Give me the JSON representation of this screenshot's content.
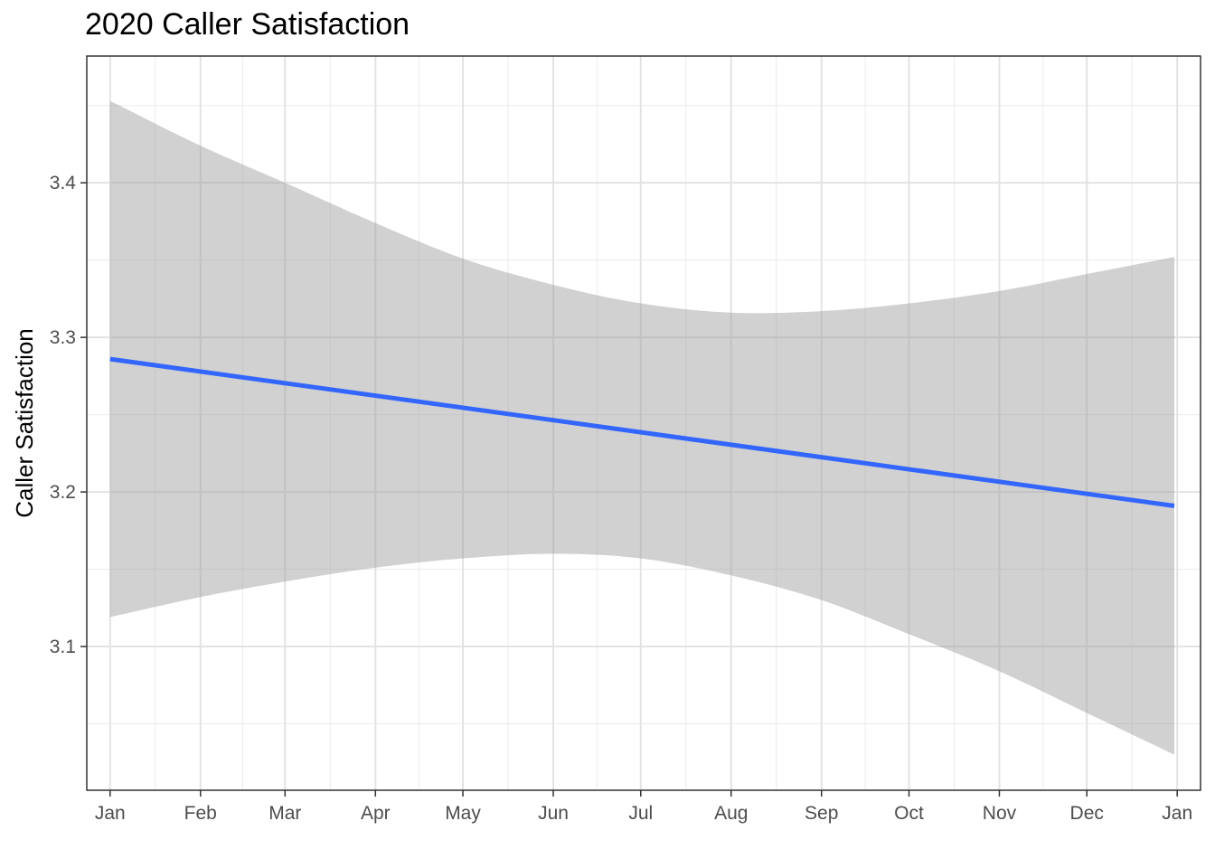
{
  "chart_data": {
    "type": "line",
    "title": "2020 Caller Satisfaction",
    "xlabel": "",
    "ylabel": "Caller Satisfaction",
    "x_tick_labels": [
      "Jan",
      "Feb",
      "Mar",
      "Apr",
      "May",
      "Jun",
      "Jul",
      "Aug",
      "Sep",
      "Oct",
      "Nov",
      "Dec",
      "Jan"
    ],
    "x_tick_dates": [
      "2020-01-01",
      "2020-02-01",
      "2020-03-01",
      "2020-04-01",
      "2020-05-01",
      "2020-06-01",
      "2020-07-01",
      "2020-08-01",
      "2020-09-01",
      "2020-10-01",
      "2020-11-01",
      "2020-12-01",
      "2021-01-01"
    ],
    "y_ticks": [
      3.1,
      3.2,
      3.3,
      3.4
    ],
    "xlim": [
      "2019-12-24",
      "2021-01-09"
    ],
    "ylim": [
      3.007,
      3.482
    ],
    "grid": true,
    "legend": "none",
    "series_color": "#3366ff",
    "band_color": "#999999",
    "series": [
      {
        "x": [
          "2020-01-01",
          "2020-12-31"
        ],
        "y": [
          3.286,
          3.191
        ]
      }
    ],
    "band": {
      "x": [
        "2020-01-01",
        "2020-02-01",
        "2020-03-01",
        "2020-04-01",
        "2020-05-01",
        "2020-06-01",
        "2020-07-01",
        "2020-08-01",
        "2020-09-01",
        "2020-10-01",
        "2020-11-01",
        "2020-12-01",
        "2020-12-31"
      ],
      "lower": [
        3.119,
        3.132,
        3.142,
        3.151,
        3.157,
        3.16,
        3.157,
        3.146,
        3.13,
        3.108,
        3.084,
        3.057,
        3.03
      ],
      "upper": [
        3.453,
        3.424,
        3.4,
        3.374,
        3.351,
        3.334,
        3.322,
        3.316,
        3.317,
        3.322,
        3.33,
        3.341,
        3.352
      ]
    }
  }
}
